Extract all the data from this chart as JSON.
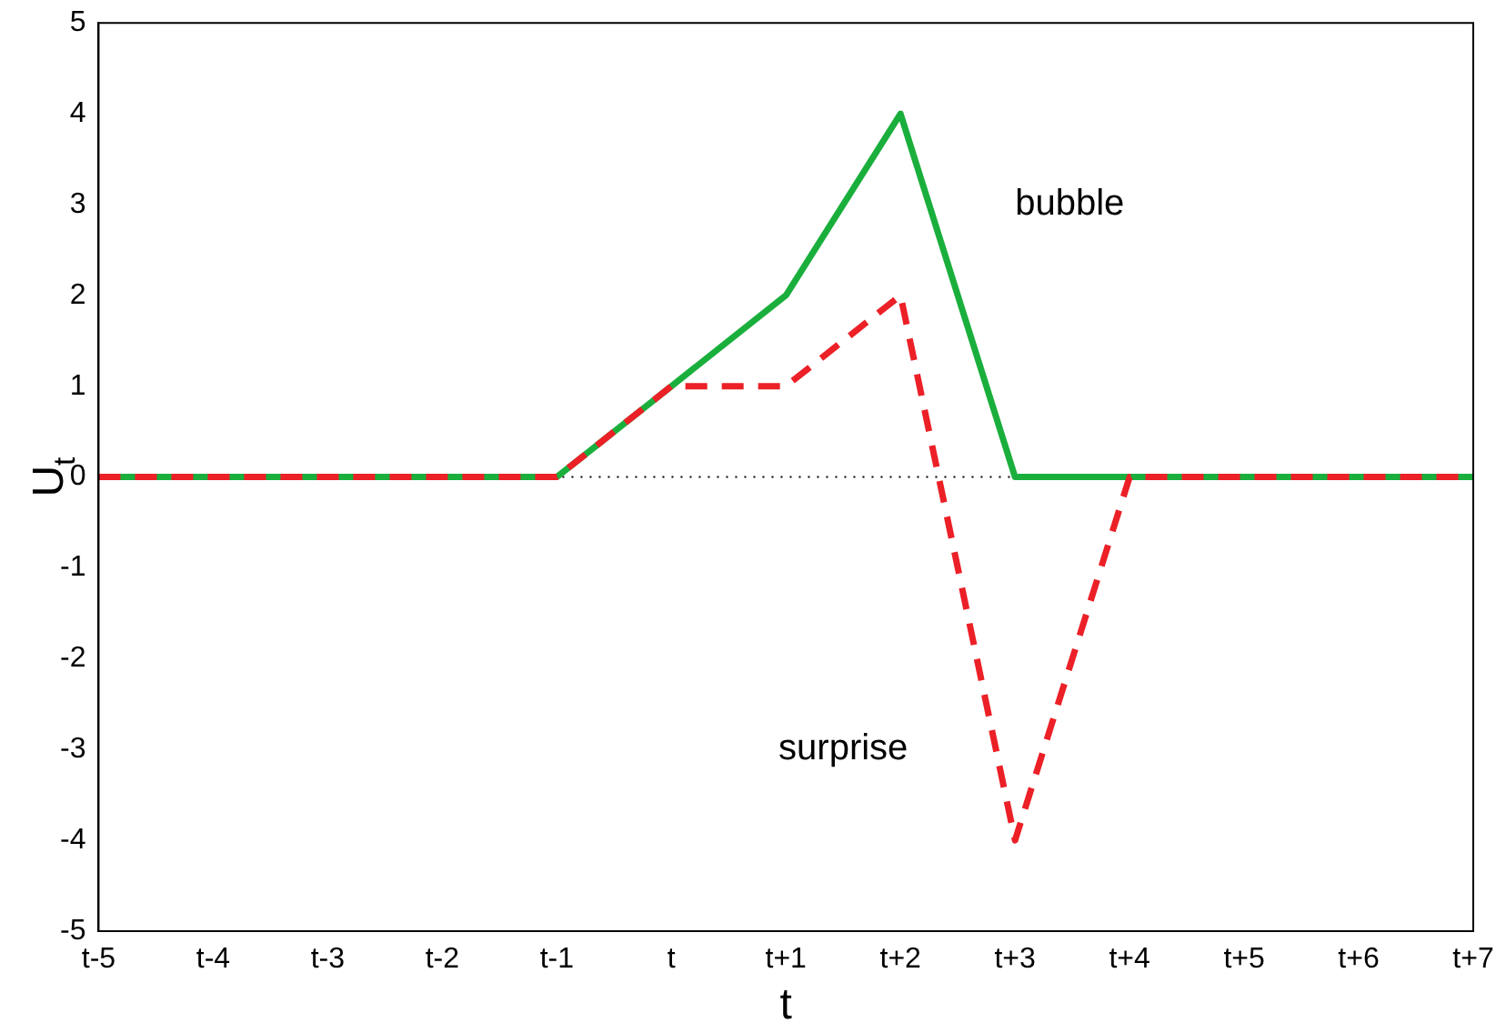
{
  "chart_data": {
    "type": "line",
    "xlabel": "t",
    "ylabel": "U$_{t}$",
    "categories": [
      "t-5",
      "t-4",
      "t-3",
      "t-2",
      "t-1",
      "t",
      "t+1",
      "t+2",
      "t+3",
      "t+4",
      "t+5",
      "t+6",
      "t+7"
    ],
    "series": [
      {
        "name": "bubble",
        "color": "#1aaf3c",
        "line_style": "solid",
        "values": [
          0,
          0,
          0,
          0,
          0,
          1,
          2,
          4,
          0,
          0,
          0,
          0,
          0
        ]
      },
      {
        "name": "surprise",
        "color": "#ec2027",
        "line_style": "dashed",
        "values": [
          0,
          0,
          0,
          0,
          0,
          1,
          1,
          2,
          -4,
          0,
          0,
          0,
          0
        ]
      }
    ],
    "ylim": [
      -5,
      5
    ],
    "yticks": [
      -5,
      -4,
      -3,
      -2,
      -1,
      0,
      1,
      2,
      3,
      4,
      5
    ],
    "grid": false,
    "legend": false,
    "marker": "none",
    "ref_lines": [
      {
        "axis": "y",
        "value": 0,
        "color": "#000000",
        "line_style": "dotted"
      }
    ]
  }
}
